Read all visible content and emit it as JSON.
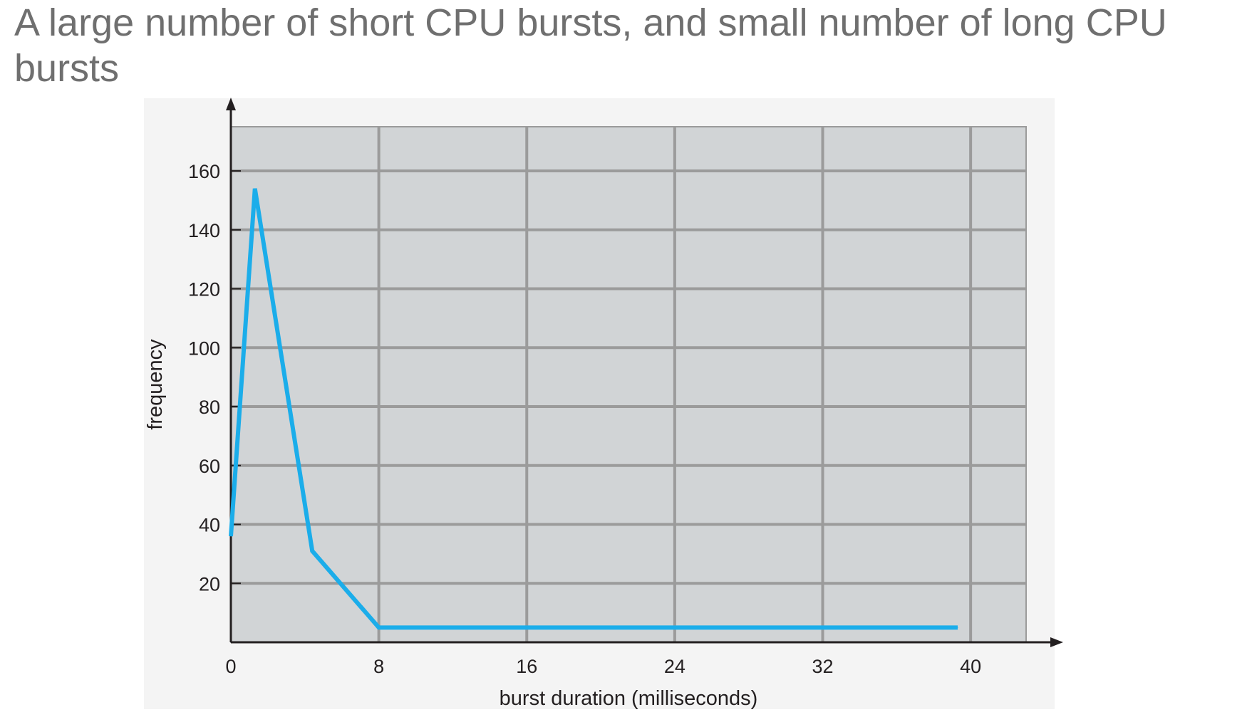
{
  "slide": {
    "title": "A large number of short CPU bursts, and small number of long CPU bursts"
  },
  "chart_data": {
    "type": "line",
    "xlabel": "burst duration (milliseconds)",
    "ylabel": "frequency",
    "xlim": [
      0,
      43
    ],
    "ylim": [
      0,
      175
    ],
    "x_ticks": [
      0,
      8,
      16,
      24,
      32,
      40
    ],
    "y_ticks": [
      20,
      40,
      60,
      80,
      100,
      120,
      140,
      160
    ],
    "x_tick_labels": [
      "0",
      "8",
      "16",
      "24",
      "32",
      "40"
    ],
    "y_tick_labels": [
      "20",
      "40",
      "60",
      "80",
      "100",
      "120",
      "140",
      "160"
    ],
    "grid": true,
    "series": [
      {
        "color": "#1badea",
        "x": [
          0,
          1.3,
          4.4,
          8,
          16,
          24,
          32,
          39.3
        ],
        "y": [
          36,
          154,
          31,
          5,
          5,
          5,
          5,
          5
        ]
      }
    ],
    "colors": {
      "plot_background": "#d1d4d6",
      "outer_background": "#f4f4f4",
      "grid": "#9b9b9b",
      "axis": "#231f20",
      "line": "#1badea"
    }
  }
}
